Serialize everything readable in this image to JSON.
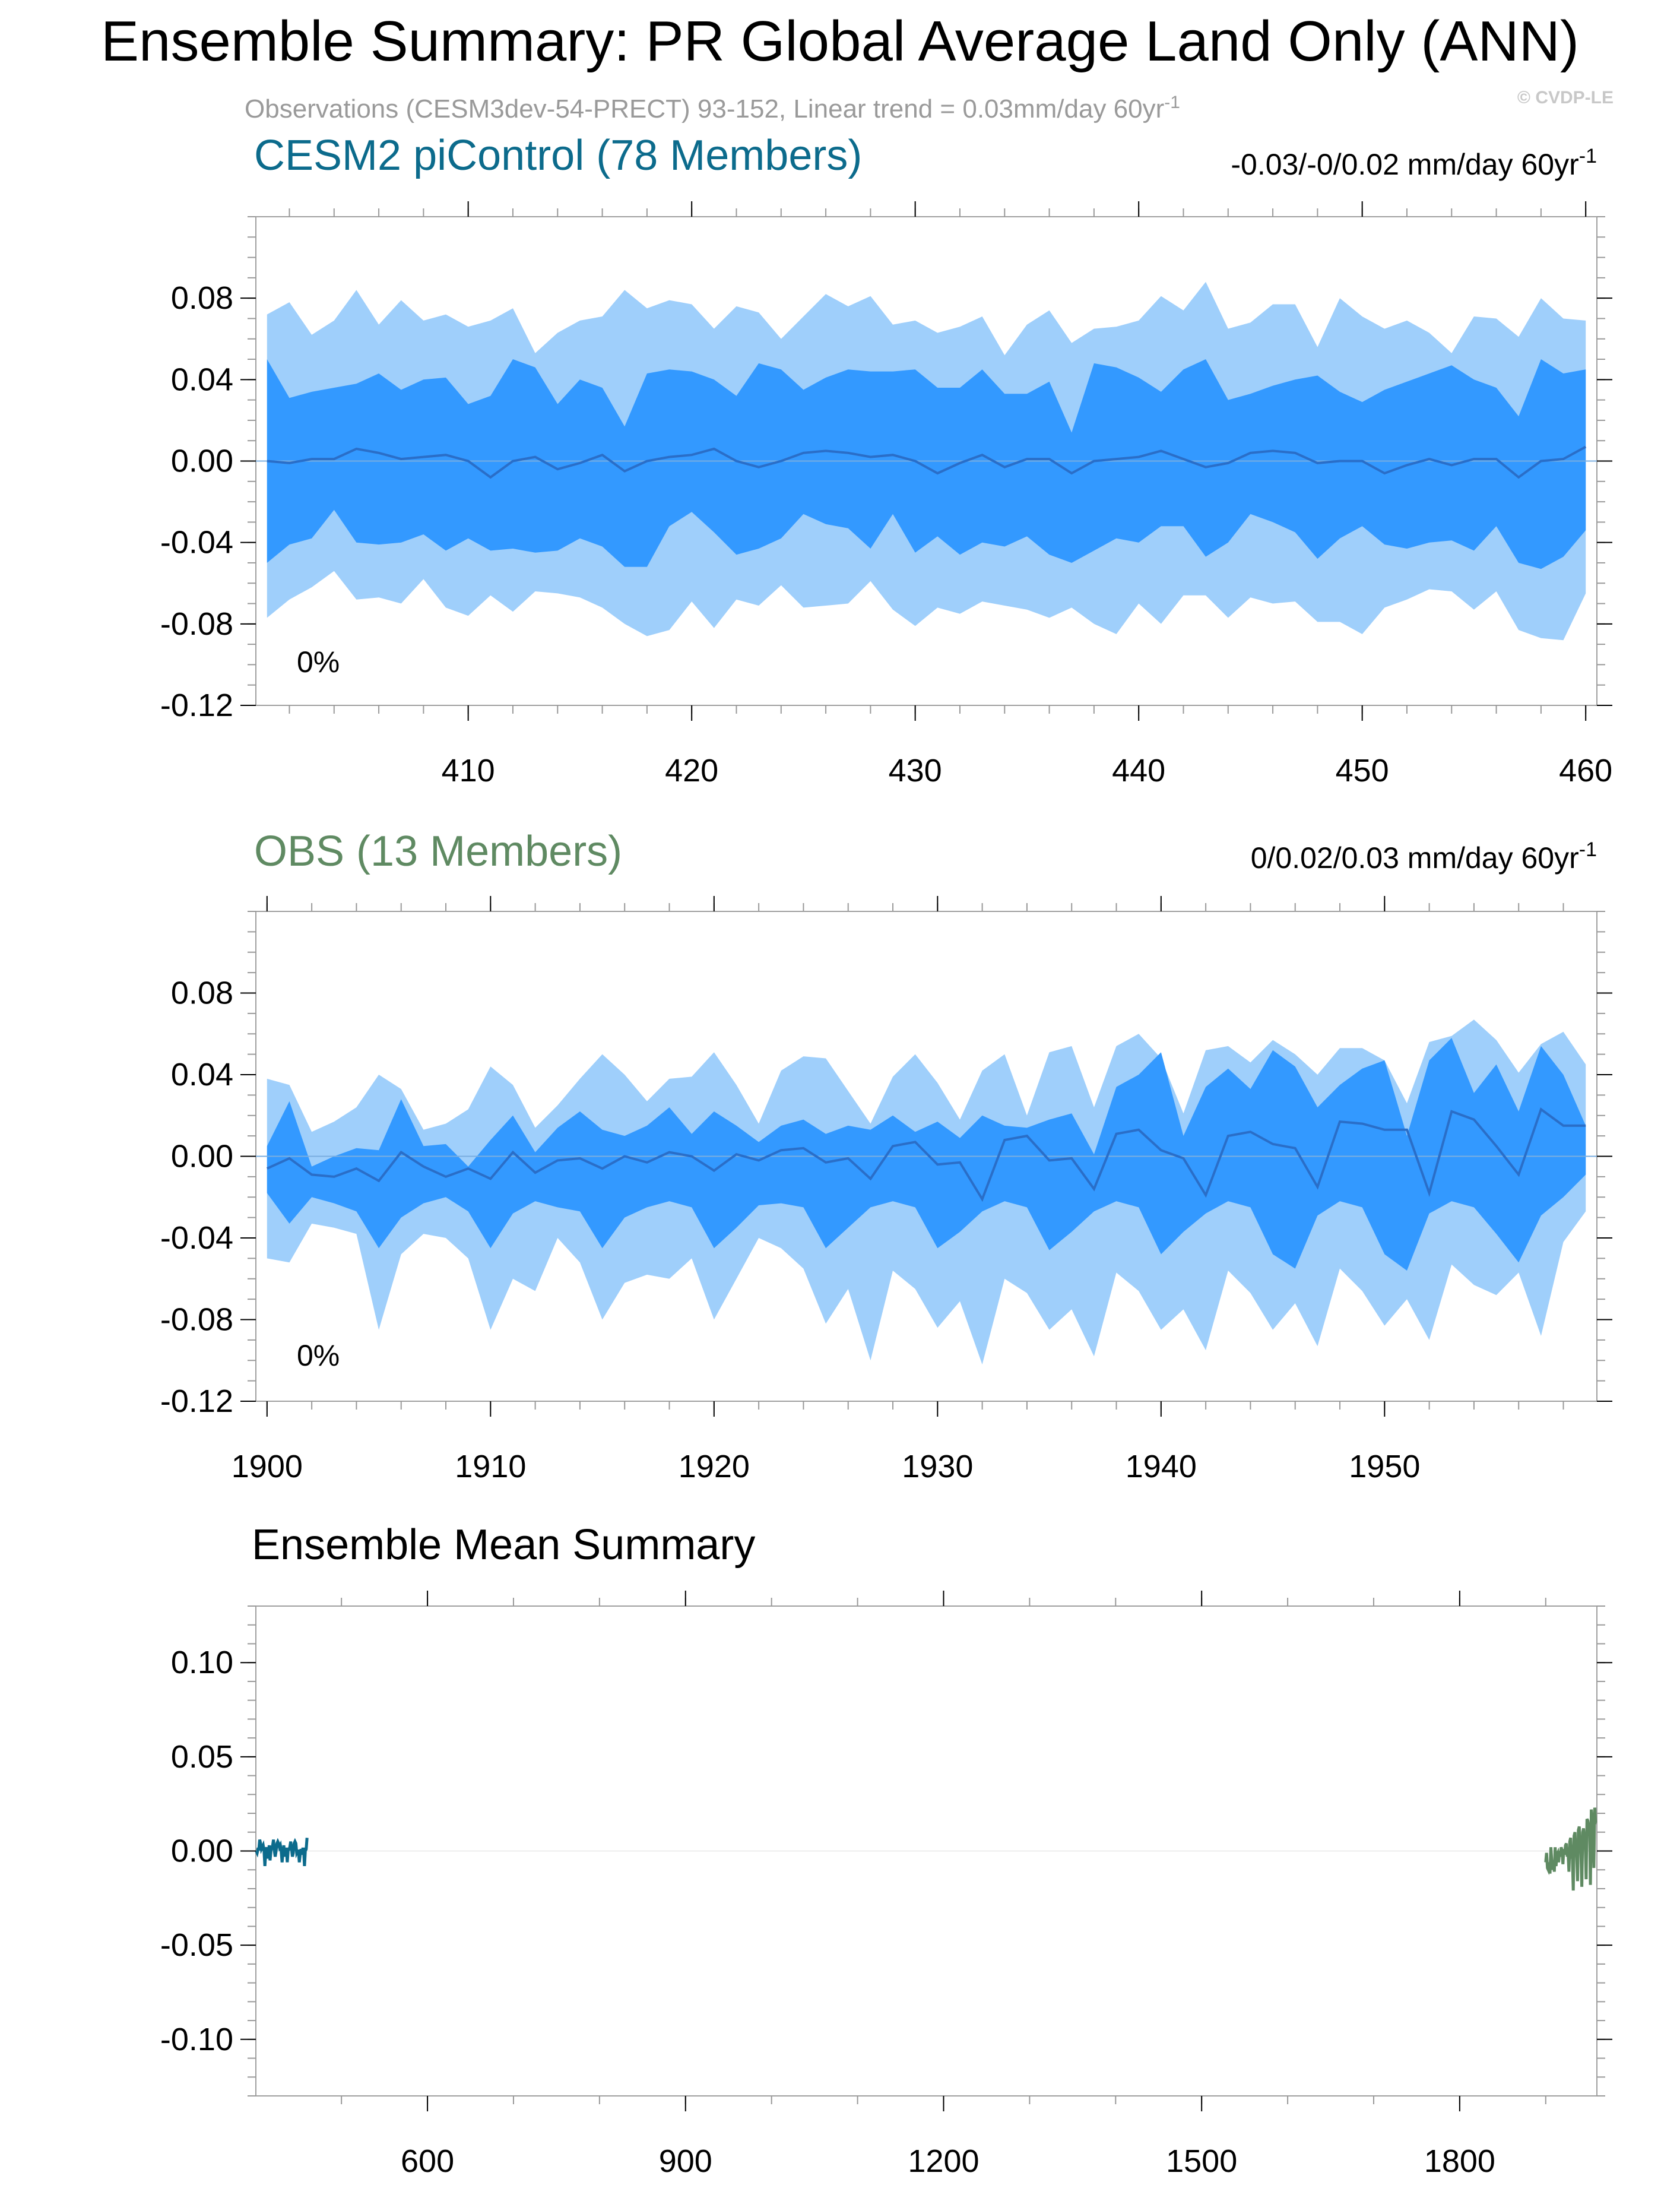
{
  "header": {
    "title": "Ensemble Summary: PR Global Average Land Only (ANN)",
    "subtitle_main": "Observations (CESM3dev-54-PRECT) 93-152, Linear trend = 0.03mm/day 60yr",
    "subtitle_sup": "-1",
    "copyright": "© CVDP-LE"
  },
  "colors": {
    "band_outer": "#9fcffb",
    "band_inner": "#3399ff",
    "mean_line": "#2a6ec8",
    "zero_line": "#7aaee0",
    "cesm2_title": "#0c6b8c",
    "obs_title": "#5f8a62",
    "axis": "#000000",
    "tick_minor": "#999999",
    "frame": "#a0a0a0"
  },
  "chart_data": [
    {
      "type": "area",
      "title": "CESM2 piControl (78 Members)",
      "trend_label": "-0.03/-0/0.02 mm/day 60yr",
      "trend_sup": "-1",
      "percent_label": "0%",
      "xlim": [
        400.5,
        460.5
      ],
      "ylim": [
        -0.12,
        0.12
      ],
      "xticks": [
        410,
        420,
        430,
        440,
        450,
        460
      ],
      "yticks": [
        0.08,
        0.04,
        0.0,
        -0.04,
        -0.08,
        -0.12
      ],
      "ytick_labels": [
        "0.08",
        "0.04",
        "0.00",
        "-0.04",
        "-0.08",
        "-0.12"
      ],
      "x_start": 401,
      "outer_upper": [
        0.072,
        0.078,
        0.062,
        0.069,
        0.084,
        0.067,
        0.079,
        0.069,
        0.072,
        0.066,
        0.069,
        0.075,
        0.053,
        0.063,
        0.069,
        0.071,
        0.084,
        0.075,
        0.079,
        0.077,
        0.065,
        0.076,
        0.073,
        0.06,
        0.071,
        0.082,
        0.076,
        0.081,
        0.067,
        0.069,
        0.063,
        0.066,
        0.071,
        0.052,
        0.067,
        0.074,
        0.058,
        0.065,
        0.066,
        0.069,
        0.081,
        0.074,
        0.088,
        0.065,
        0.068,
        0.077,
        0.077,
        0.056,
        0.08,
        0.071,
        0.065,
        0.069,
        0.063,
        0.053,
        0.071,
        0.07,
        0.061,
        0.08,
        0.07,
        0.069
      ],
      "inner_upper": [
        0.05,
        0.031,
        0.034,
        0.036,
        0.038,
        0.043,
        0.035,
        0.04,
        0.041,
        0.028,
        0.032,
        0.05,
        0.046,
        0.028,
        0.04,
        0.036,
        0.017,
        0.043,
        0.045,
        0.044,
        0.04,
        0.032,
        0.048,
        0.045,
        0.035,
        0.041,
        0.045,
        0.044,
        0.044,
        0.045,
        0.036,
        0.036,
        0.045,
        0.033,
        0.033,
        0.039,
        0.014,
        0.048,
        0.046,
        0.041,
        0.034,
        0.045,
        0.05,
        0.03,
        0.033,
        0.037,
        0.04,
        0.042,
        0.034,
        0.029,
        0.035,
        0.039,
        0.043,
        0.047,
        0.04,
        0.036,
        0.022,
        0.05,
        0.043,
        0.045
      ],
      "mean": [
        0.0,
        -0.001,
        0.001,
        0.001,
        0.006,
        0.004,
        0.001,
        0.002,
        0.003,
        0.0,
        -0.008,
        0.0,
        0.002,
        -0.004,
        -0.001,
        0.003,
        -0.005,
        0.0,
        0.002,
        0.003,
        0.006,
        0.0,
        -0.003,
        0.0,
        0.004,
        0.005,
        0.004,
        0.002,
        0.003,
        0.0,
        -0.006,
        -0.001,
        0.003,
        -0.003,
        0.001,
        0.001,
        -0.006,
        0.0,
        0.001,
        0.002,
        0.005,
        0.001,
        -0.003,
        -0.001,
        0.004,
        0.005,
        0.004,
        -0.001,
        0.0,
        0.0,
        -0.006,
        -0.002,
        0.001,
        -0.002,
        0.001,
        0.001,
        -0.008,
        0.0,
        0.001,
        0.007
      ],
      "inner_lower": [
        -0.05,
        -0.041,
        -0.038,
        -0.024,
        -0.04,
        -0.041,
        -0.04,
        -0.036,
        -0.044,
        -0.038,
        -0.044,
        -0.043,
        -0.045,
        -0.044,
        -0.038,
        -0.042,
        -0.052,
        -0.052,
        -0.032,
        -0.025,
        -0.035,
        -0.046,
        -0.043,
        -0.038,
        -0.026,
        -0.031,
        -0.033,
        -0.043,
        -0.026,
        -0.045,
        -0.037,
        -0.046,
        -0.04,
        -0.042,
        -0.037,
        -0.046,
        -0.05,
        -0.044,
        -0.038,
        -0.04,
        -0.032,
        -0.032,
        -0.047,
        -0.04,
        -0.026,
        -0.03,
        -0.035,
        -0.048,
        -0.038,
        -0.032,
        -0.041,
        -0.043,
        -0.04,
        -0.039,
        -0.044,
        -0.032,
        -0.05,
        -0.053,
        -0.047,
        -0.034
      ],
      "outer_lower": [
        -0.077,
        -0.068,
        -0.062,
        -0.054,
        -0.068,
        -0.067,
        -0.07,
        -0.058,
        -0.072,
        -0.076,
        -0.066,
        -0.074,
        -0.064,
        -0.065,
        -0.067,
        -0.072,
        -0.08,
        -0.086,
        -0.083,
        -0.069,
        -0.082,
        -0.068,
        -0.071,
        -0.061,
        -0.072,
        -0.071,
        -0.07,
        -0.059,
        -0.073,
        -0.081,
        -0.072,
        -0.075,
        -0.069,
        -0.071,
        -0.073,
        -0.077,
        -0.072,
        -0.08,
        -0.085,
        -0.07,
        -0.08,
        -0.066,
        -0.066,
        -0.077,
        -0.067,
        -0.07,
        -0.069,
        -0.079,
        -0.079,
        -0.085,
        -0.072,
        -0.068,
        -0.063,
        -0.064,
        -0.073,
        -0.064,
        -0.083,
        -0.087,
        -0.088,
        -0.065
      ]
    },
    {
      "type": "area",
      "title": "OBS (13 Members)",
      "trend_label": "0/0.02/0.03 mm/day 60yr",
      "trend_sup": "-1",
      "percent_label": "0%",
      "xlim": [
        1899.5,
        1959.5
      ],
      "ylim": [
        -0.12,
        0.12
      ],
      "xticks": [
        1900,
        1910,
        1920,
        1930,
        1940,
        1950
      ],
      "yticks": [
        0.08,
        0.04,
        0.0,
        -0.04,
        -0.08,
        -0.12
      ],
      "ytick_labels": [
        "0.08",
        "0.04",
        "0.00",
        "-0.04",
        "-0.08",
        "-0.12"
      ],
      "x_start": 1900,
      "outer_upper": [
        0.038,
        0.035,
        0.012,
        0.017,
        0.024,
        0.04,
        0.033,
        0.013,
        0.016,
        0.023,
        0.044,
        0.035,
        0.014,
        0.025,
        0.038,
        0.05,
        0.04,
        0.027,
        0.038,
        0.039,
        0.051,
        0.035,
        0.016,
        0.042,
        0.049,
        0.048,
        0.032,
        0.016,
        0.039,
        0.05,
        0.036,
        0.018,
        0.042,
        0.05,
        0.02,
        0.051,
        0.054,
        0.024,
        0.054,
        0.06,
        0.048,
        0.021,
        0.052,
        0.054,
        0.046,
        0.057,
        0.05,
        0.04,
        0.053,
        0.053,
        0.047,
        0.026,
        0.056,
        0.059,
        0.067,
        0.057,
        0.041,
        0.055,
        0.061,
        0.045
      ],
      "inner_upper": [
        0.005,
        0.027,
        -0.005,
        0.0,
        0.004,
        0.003,
        0.028,
        0.005,
        0.006,
        -0.005,
        0.008,
        0.02,
        0.002,
        0.014,
        0.022,
        0.013,
        0.01,
        0.015,
        0.024,
        0.011,
        0.022,
        0.015,
        0.007,
        0.015,
        0.018,
        0.011,
        0.015,
        0.013,
        0.02,
        0.012,
        0.017,
        0.009,
        0.02,
        0.015,
        0.014,
        0.018,
        0.021,
        0.001,
        0.034,
        0.04,
        0.051,
        0.01,
        0.034,
        0.043,
        0.033,
        0.052,
        0.044,
        0.024,
        0.035,
        0.043,
        0.047,
        0.01,
        0.047,
        0.058,
        0.031,
        0.045,
        0.022,
        0.054,
        0.04,
        0.015
      ],
      "mean": [
        -0.006,
        -0.001,
        -0.009,
        -0.01,
        -0.006,
        -0.012,
        0.002,
        -0.005,
        -0.01,
        -0.006,
        -0.011,
        0.002,
        -0.008,
        -0.002,
        -0.001,
        -0.006,
        0.0,
        -0.003,
        0.002,
        0.0,
        -0.007,
        0.001,
        -0.002,
        0.003,
        0.004,
        -0.003,
        -0.001,
        -0.011,
        0.005,
        0.007,
        -0.004,
        -0.003,
        -0.021,
        0.008,
        0.01,
        -0.002,
        -0.001,
        -0.016,
        0.011,
        0.013,
        0.003,
        -0.001,
        -0.019,
        0.01,
        0.012,
        0.006,
        0.004,
        -0.015,
        0.017,
        0.016,
        0.013,
        0.013,
        -0.018,
        0.022,
        0.018,
        0.005,
        -0.009,
        0.023,
        0.015,
        0.015
      ],
      "inner_lower": [
        -0.018,
        -0.033,
        -0.02,
        -0.023,
        -0.027,
        -0.045,
        -0.03,
        -0.023,
        -0.02,
        -0.027,
        -0.045,
        -0.028,
        -0.022,
        -0.025,
        -0.027,
        -0.045,
        -0.03,
        -0.025,
        -0.022,
        -0.025,
        -0.045,
        -0.035,
        -0.024,
        -0.023,
        -0.025,
        -0.045,
        -0.035,
        -0.025,
        -0.022,
        -0.025,
        -0.045,
        -0.037,
        -0.027,
        -0.022,
        -0.025,
        -0.046,
        -0.037,
        -0.027,
        -0.022,
        -0.025,
        -0.048,
        -0.037,
        -0.028,
        -0.022,
        -0.025,
        -0.048,
        -0.055,
        -0.029,
        -0.022,
        -0.025,
        -0.048,
        -0.056,
        -0.028,
        -0.022,
        -0.025,
        -0.038,
        -0.052,
        -0.029,
        -0.02,
        -0.009
      ],
      "outer_lower": [
        -0.05,
        -0.052,
        -0.033,
        -0.035,
        -0.038,
        -0.085,
        -0.048,
        -0.038,
        -0.04,
        -0.05,
        -0.085,
        -0.06,
        -0.066,
        -0.04,
        -0.052,
        -0.08,
        -0.062,
        -0.058,
        -0.06,
        -0.05,
        -0.08,
        -0.06,
        -0.04,
        -0.045,
        -0.055,
        -0.082,
        -0.065,
        -0.1,
        -0.056,
        -0.065,
        -0.084,
        -0.071,
        -0.102,
        -0.06,
        -0.067,
        -0.085,
        -0.075,
        -0.098,
        -0.057,
        -0.066,
        -0.085,
        -0.075,
        -0.095,
        -0.056,
        -0.067,
        -0.085,
        -0.072,
        -0.093,
        -0.055,
        -0.066,
        -0.083,
        -0.07,
        -0.09,
        -0.053,
        -0.063,
        -0.068,
        -0.057,
        -0.088,
        -0.042,
        -0.027
      ]
    },
    {
      "type": "line",
      "title": "Ensemble Mean Summary",
      "xlim": [
        400.5,
        1959.5
      ],
      "ylim": [
        -0.13,
        0.13
      ],
      "xticks": [
        600,
        900,
        1200,
        1500,
        1800
      ],
      "yticks": [
        0.1,
        0.05,
        0.0,
        -0.05,
        -0.1
      ],
      "ytick_labels": [
        "0.10",
        "0.05",
        "0.00",
        "-0.05",
        "-0.10"
      ],
      "series": [
        {
          "x_start": 401,
          "color": "#0c6b8c",
          "values": [
            0.0,
            -0.001,
            0.001,
            0.001,
            0.006,
            0.004,
            0.001,
            0.002,
            0.003,
            0.0,
            -0.008,
            0.0,
            0.002,
            -0.004,
            -0.001,
            0.003,
            -0.005,
            0.0,
            0.002,
            0.003,
            0.006,
            0.0,
            -0.003,
            0.0,
            0.004,
            0.005,
            0.004,
            0.002,
            0.003,
            0.0,
            -0.006,
            -0.001,
            0.003,
            -0.003,
            0.001,
            0.001,
            -0.006,
            0.0,
            0.001,
            0.002,
            0.005,
            0.001,
            -0.003,
            -0.001,
            0.004,
            0.005,
            0.004,
            -0.001,
            0.0,
            0.0,
            -0.006,
            -0.002,
            0.001,
            -0.002,
            0.001,
            0.001,
            -0.008,
            0.0,
            0.001,
            0.007
          ]
        },
        {
          "x_start": 1900,
          "color": "#5f8a62",
          "values": [
            -0.006,
            -0.001,
            -0.009,
            -0.01,
            -0.006,
            -0.012,
            0.002,
            -0.005,
            -0.01,
            -0.006,
            -0.011,
            0.002,
            -0.008,
            -0.002,
            -0.001,
            -0.006,
            0.0,
            -0.003,
            0.002,
            0.0,
            -0.007,
            0.001,
            -0.002,
            0.003,
            0.004,
            -0.003,
            -0.001,
            -0.011,
            0.005,
            0.007,
            -0.004,
            -0.003,
            -0.021,
            0.008,
            0.01,
            -0.002,
            -0.001,
            -0.016,
            0.011,
            0.013,
            0.003,
            -0.001,
            -0.019,
            0.01,
            0.012,
            0.006,
            0.004,
            -0.015,
            0.017,
            0.016,
            0.013,
            0.013,
            -0.018,
            0.022,
            0.018,
            0.005,
            -0.009,
            0.023,
            0.015,
            0.015
          ]
        }
      ]
    }
  ]
}
